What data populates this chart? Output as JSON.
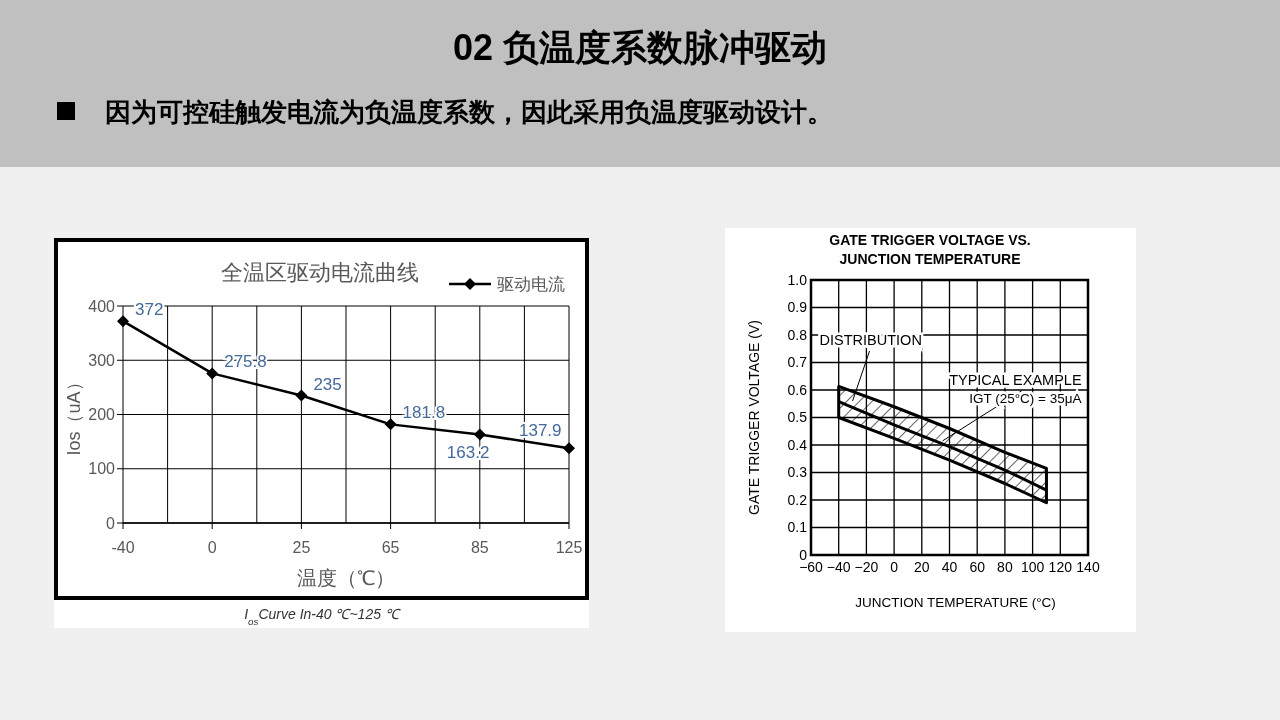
{
  "chart_data": [
    {
      "type": "other",
      "title": "02 负温度系数脉冲驱动",
      "subtitle": "因为可控硅触发电流为负温度系数，因此采用负温度驱动设计。"
    },
    {
      "type": "line",
      "title": "全温区驱动电流曲线",
      "xlabel": "温度（℃）",
      "ylabel": "Ios（uA）",
      "categories": [
        "-40",
        "0",
        "25",
        "65",
        "85",
        "125"
      ],
      "series": [
        {
          "name": "驱动电流",
          "color": "#000000",
          "values": [
            372,
            275.8,
            235,
            181.8,
            163.2,
            137.9
          ]
        }
      ],
      "ylim": [
        0,
        400
      ],
      "yticks": [
        0,
        100,
        200,
        300,
        400
      ],
      "grid": true,
      "legend": "top right",
      "marker": "diamond",
      "data_labels": true,
      "annotations": [
        "I$_{os}$Curve In-40 ℃~125 ℃"
      ]
    },
    {
      "type": "line",
      "title": "GATE TRIGGER VOLTAGE VS. JUNCTION TEMPERATURE",
      "xlabel": "JUNCTION TEMPERATURE  (°C)",
      "ylabel": "GATE TRIGGER VOLTAGE  (V)",
      "series": [
        {
          "color": "#000000",
          "x": [
            -40,
            0,
            40,
            80,
            110
          ],
          "values": [
            0.558,
            0.473,
            0.394,
            0.309,
            0.236
          ],
          "lower": [
            0.5,
            0.424,
            0.345,
            0.26,
            0.19
          ],
          "upper": [
            0.613,
            0.539,
            0.46,
            0.373,
            0.315
          ]
        }
      ],
      "xlim": [
        -60,
        140
      ],
      "xticks": [
        -60,
        -40,
        -20,
        0,
        20,
        40,
        60,
        80,
        100,
        120,
        140
      ],
      "ylim": [
        0,
        1
      ],
      "yticks": [
        0,
        0.1,
        0.2,
        0.3,
        0.4,
        0.5,
        0.6,
        0.7,
        0.8,
        0.9,
        {
          "value": 1,
          "label": "1.0"
        }
      ],
      "grid": true,
      "annotations": [
        {
          "text": "DISTRIBUTION",
          "x": -30,
          "y": 0.56
        },
        {
          "text": "TYPICAL EXAMPLE",
          "x": 35,
          "y": 0.415
        },
        "IGT (25°C) = 35μA"
      ]
    }
  ]
}
